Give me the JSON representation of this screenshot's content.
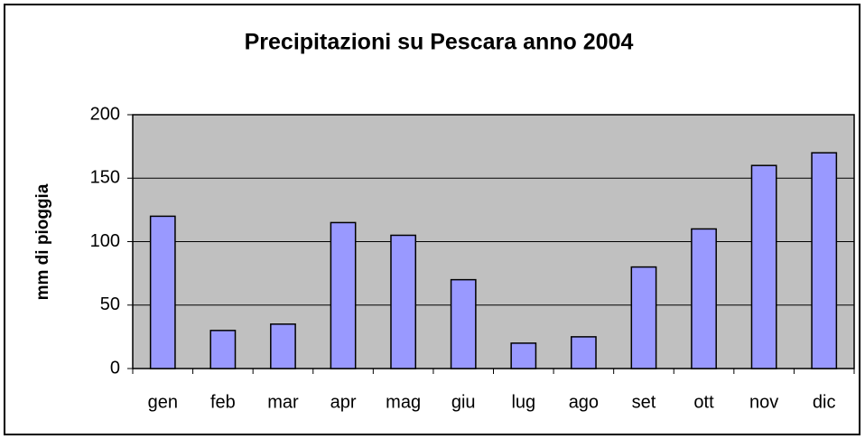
{
  "chart_data": {
    "type": "bar",
    "title": "Precipitazioni su Pescara anno 2004",
    "y_label": "mm di pioggia",
    "categories": [
      "gen",
      "feb",
      "mar",
      "apr",
      "mag",
      "giu",
      "lug",
      "ago",
      "set",
      "ott",
      "nov",
      "dic"
    ],
    "values": [
      120,
      30,
      35,
      115,
      105,
      70,
      20,
      25,
      80,
      110,
      160,
      170
    ],
    "color": "#9999ff",
    "ylim": [
      0,
      200
    ],
    "yticks": [
      0,
      50,
      100,
      150,
      200
    ],
    "grid": true
  }
}
